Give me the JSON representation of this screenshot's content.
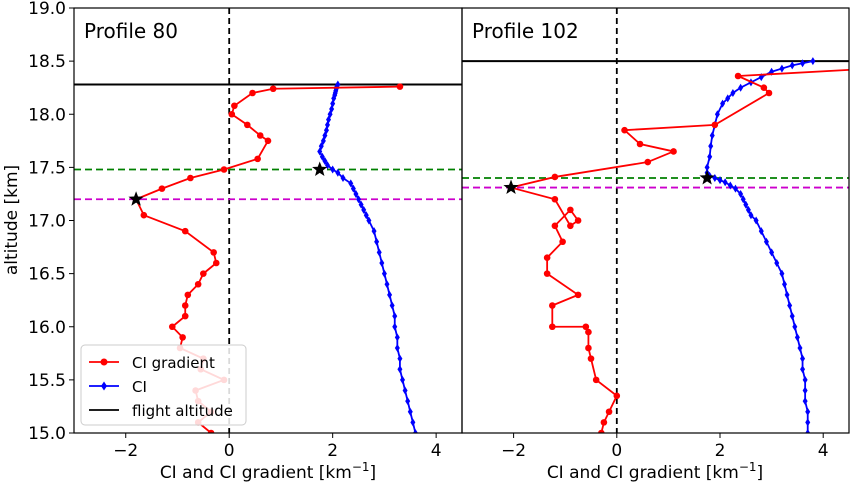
{
  "chart_data": {
    "type": "line",
    "ylabel": "altitude [km]",
    "ylim": [
      15.0,
      19.0
    ],
    "yticks": [
      "15.0",
      "15.5",
      "16.0",
      "16.5",
      "17.0",
      "17.5",
      "18.0",
      "18.5",
      "19.0"
    ],
    "xlim": [
      -3.0,
      4.5
    ],
    "xticks": [
      "−2",
      "0",
      "2",
      "4"
    ],
    "xlabel_text": "CI and CI gradient [km",
    "xlabel_sup": "−1",
    "xlabel_close": "]",
    "legend": {
      "placement": "lower-left",
      "entries": [
        "CI gradient",
        "CI",
        "flight altitude"
      ]
    },
    "colors": {
      "gradient": "#ff0000",
      "ci": "#0000ff",
      "flight": "#000000",
      "tropopause": "#008000",
      "magenta": "#cc00cc"
    },
    "panels": [
      {
        "title": "Profile 80",
        "flight_altitude": 18.28,
        "green_line": 17.48,
        "magenta_line": 17.2,
        "star_gradient": {
          "x": -1.8,
          "y": 17.2
        },
        "star_ci": {
          "x": 1.75,
          "y": 17.48
        },
        "gradient_x": [
          -0.35,
          -0.6,
          -0.35,
          -0.6,
          -0.65,
          -0.1,
          -0.55,
          -0.5,
          -0.95,
          -0.9,
          -1.1,
          -0.85,
          -0.85,
          -0.8,
          -0.6,
          -0.5,
          -0.25,
          -0.3,
          -0.85,
          -1.65,
          -1.8,
          -1.3,
          -0.75,
          -0.1,
          0.55,
          0.75,
          0.6,
          0.35,
          0.05,
          0.1,
          0.45,
          0.85,
          3.3
        ],
        "gradient_y": [
          15.0,
          15.1,
          15.2,
          15.3,
          15.4,
          15.5,
          15.6,
          15.7,
          15.8,
          15.9,
          16.0,
          16.1,
          16.2,
          16.3,
          16.4,
          16.5,
          16.6,
          16.7,
          16.9,
          17.05,
          17.2,
          17.3,
          17.4,
          17.48,
          17.58,
          17.75,
          17.8,
          17.9,
          18.0,
          18.08,
          18.2,
          18.24,
          18.26
        ],
        "ci_x": [
          3.6,
          3.55,
          3.5,
          3.45,
          3.4,
          3.35,
          3.3,
          3.3,
          3.25,
          3.25,
          3.2,
          3.2,
          3.15,
          3.1,
          3.05,
          3.0,
          2.95,
          2.9,
          2.85,
          2.8,
          2.7,
          2.65,
          2.6,
          2.55,
          2.5,
          2.45,
          2.4,
          2.35,
          2.2,
          2.1,
          2.0,
          1.9,
          1.85,
          1.8,
          1.75,
          1.78,
          1.82,
          1.85,
          1.88,
          1.9,
          1.92,
          1.95,
          1.98,
          2.0,
          2.02,
          2.04,
          2.05,
          2.06,
          2.07,
          2.08,
          2.1
        ],
        "ci_y": [
          15.0,
          15.1,
          15.2,
          15.3,
          15.4,
          15.5,
          15.6,
          15.7,
          15.8,
          15.9,
          16.0,
          16.1,
          16.2,
          16.3,
          16.4,
          16.5,
          16.6,
          16.7,
          16.8,
          16.9,
          17.0,
          17.05,
          17.1,
          17.15,
          17.2,
          17.25,
          17.3,
          17.35,
          17.4,
          17.45,
          17.48,
          17.52,
          17.56,
          17.6,
          17.65,
          17.7,
          17.75,
          17.8,
          17.85,
          17.9,
          17.95,
          18.0,
          18.05,
          18.1,
          18.15,
          18.18,
          18.2,
          18.22,
          18.24,
          18.26,
          18.28
        ]
      },
      {
        "title": "Profile 102",
        "flight_altitude": 18.5,
        "green_line": 17.4,
        "magenta_line": 17.31,
        "star_gradient": {
          "x": -2.05,
          "y": 17.31
        },
        "star_ci": {
          "x": 1.75,
          "y": 17.4
        },
        "gradient_x": [
          -0.3,
          -0.25,
          -0.15,
          0.0,
          -0.4,
          -0.5,
          -0.55,
          -0.55,
          -0.6,
          -1.25,
          -1.25,
          -0.75,
          -1.35,
          -1.35,
          -1.05,
          -1.2,
          -0.9,
          -0.75,
          -0.9,
          -1.2,
          -2.05,
          -1.2,
          0.6,
          1.1,
          0.45,
          0.15,
          1.9,
          2.95,
          2.85,
          2.35,
          4.6
        ],
        "gradient_y": [
          15.0,
          15.1,
          15.2,
          15.35,
          15.5,
          15.7,
          15.8,
          15.95,
          16.0,
          16.0,
          16.2,
          16.3,
          16.5,
          16.65,
          16.8,
          16.95,
          17.1,
          17.0,
          16.95,
          17.2,
          17.31,
          17.41,
          17.55,
          17.65,
          17.72,
          17.85,
          17.9,
          18.2,
          18.25,
          18.36,
          18.42
        ],
        "ci_x": [
          3.7,
          3.7,
          3.7,
          3.65,
          3.65,
          3.65,
          3.6,
          3.6,
          3.55,
          3.5,
          3.45,
          3.4,
          3.35,
          3.3,
          3.25,
          3.2,
          3.1,
          3.0,
          2.9,
          2.8,
          2.7,
          2.6,
          2.55,
          2.5,
          2.45,
          2.4,
          2.3,
          2.2,
          2.1,
          2.0,
          1.9,
          1.8,
          1.75,
          1.75,
          1.8,
          1.82,
          1.85,
          1.9,
          1.95,
          2.05,
          2.15,
          2.25,
          2.4,
          2.6,
          2.8,
          3.0,
          3.2,
          3.4,
          3.6,
          3.8
        ],
        "ci_y": [
          15.0,
          15.1,
          15.2,
          15.3,
          15.4,
          15.5,
          15.6,
          15.7,
          15.8,
          15.9,
          16.0,
          16.1,
          16.2,
          16.3,
          16.4,
          16.5,
          16.6,
          16.7,
          16.8,
          16.9,
          17.0,
          17.05,
          17.1,
          17.15,
          17.2,
          17.25,
          17.3,
          17.33,
          17.36,
          17.38,
          17.4,
          17.42,
          17.45,
          17.5,
          17.6,
          17.7,
          17.8,
          17.9,
          18.0,
          18.1,
          18.15,
          18.2,
          18.25,
          18.3,
          18.35,
          18.4,
          18.43,
          18.46,
          18.48,
          18.5
        ]
      }
    ]
  }
}
